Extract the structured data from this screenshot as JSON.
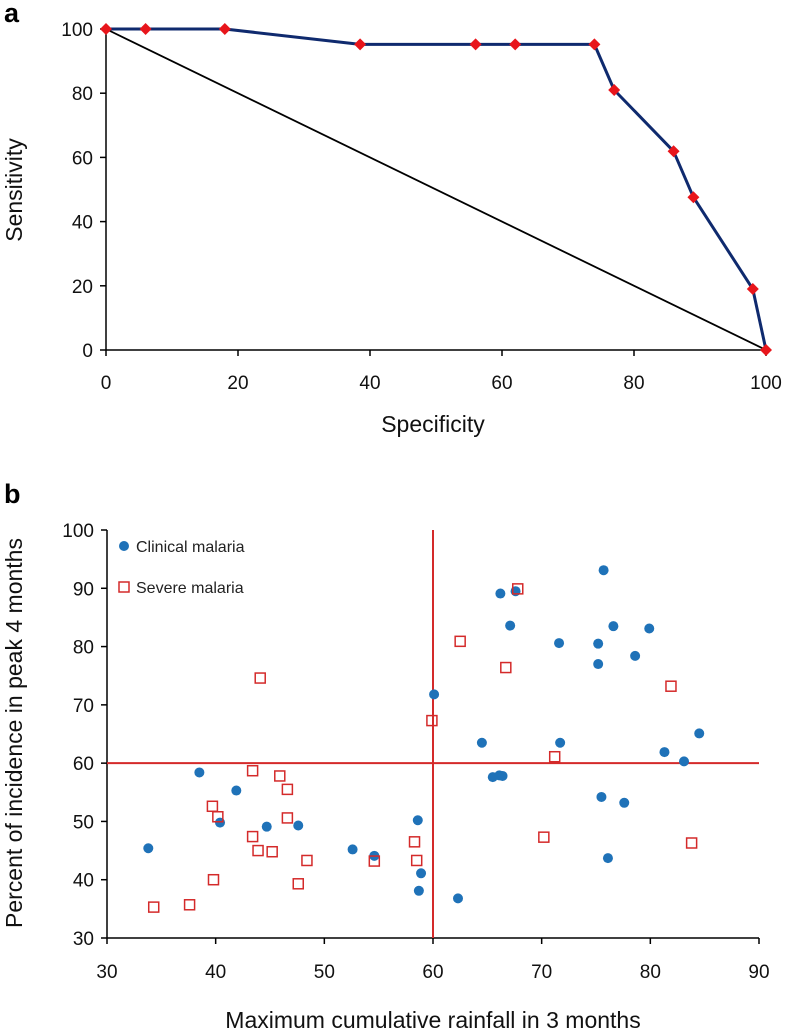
{
  "colors": {
    "roc_line": "#0f2a6e",
    "roc_marker": "#e8151b",
    "clinical": "#1f72b8",
    "severe": "#d42a2a",
    "threshold": "#d42a2a"
  },
  "chart_data": [
    {
      "panel_label": "a",
      "type": "line",
      "xlabel": "Specificity",
      "ylabel": "Sensitivity",
      "xlim": [
        0,
        100
      ],
      "ylim": [
        0,
        100
      ],
      "xticks": [
        "0",
        "20",
        "40",
        "60",
        "80",
        "100"
      ],
      "yticks": [
        "0",
        "20",
        "40",
        "60",
        "80",
        "100"
      ],
      "grid": false,
      "series": [
        {
          "name": "ROC curve",
          "x": [
            0,
            6,
            18,
            38.5,
            56,
            62,
            74,
            77,
            86,
            89,
            98,
            100
          ],
          "y": [
            100,
            100,
            100,
            95.2,
            95.2,
            95.2,
            95.2,
            81,
            61.9,
            47.6,
            19,
            0
          ]
        },
        {
          "name": "Reference line",
          "x": [
            0,
            100
          ],
          "y": [
            100,
            0
          ]
        }
      ]
    },
    {
      "panel_label": "b",
      "type": "scatter",
      "xlabel": "Maximum cumulative rainfall in 3 months",
      "ylabel": "Percent of incidence in peak 4 months",
      "xlim": [
        30,
        90
      ],
      "ylim": [
        30,
        100
      ],
      "xticks": [
        "30",
        "40",
        "50",
        "60",
        "70",
        "80",
        "90"
      ],
      "yticks": [
        "30",
        "40",
        "50",
        "60",
        "70",
        "80",
        "90",
        "100"
      ],
      "grid": false,
      "legend": {
        "position": "top-left",
        "entries": [
          "Clinical malaria",
          "Severe malaria"
        ]
      },
      "threshold_lines": {
        "x": 60,
        "y": 60
      },
      "series": [
        {
          "name": "Clinical malaria",
          "marker": "filled-circle",
          "points": [
            [
              33.8,
              45.4
            ],
            [
              38.5,
              58.4
            ],
            [
              40.4,
              49.8
            ],
            [
              41.9,
              55.3
            ],
            [
              44.7,
              49.1
            ],
            [
              47.6,
              49.3
            ],
            [
              52.6,
              45.2
            ],
            [
              54.6,
              44.1
            ],
            [
              58.6,
              50.2
            ],
            [
              58.9,
              41.1
            ],
            [
              58.7,
              38.1
            ],
            [
              62.3,
              36.8
            ],
            [
              60.1,
              71.8
            ],
            [
              64.5,
              63.5
            ],
            [
              65.5,
              57.6
            ],
            [
              66.1,
              57.9
            ],
            [
              66.4,
              57.8
            ],
            [
              66.2,
              89.1
            ],
            [
              67.1,
              83.6
            ],
            [
              67.6,
              89.5
            ],
            [
              71.6,
              80.6
            ],
            [
              71.7,
              63.5
            ],
            [
              75.2,
              80.5
            ],
            [
              75.2,
              77.0
            ],
            [
              75.5,
              54.2
            ],
            [
              75.7,
              93.1
            ],
            [
              76.1,
              43.7
            ],
            [
              76.6,
              83.5
            ],
            [
              77.6,
              53.2
            ],
            [
              78.6,
              78.4
            ],
            [
              79.9,
              83.1
            ],
            [
              81.3,
              61.9
            ],
            [
              83.1,
              60.3
            ],
            [
              84.5,
              65.1
            ]
          ]
        },
        {
          "name": "Severe malaria",
          "marker": "open-square",
          "points": [
            [
              34.3,
              35.3
            ],
            [
              37.6,
              35.7
            ],
            [
              39.7,
              52.6
            ],
            [
              39.8,
              40.0
            ],
            [
              40.2,
              50.8
            ],
            [
              43.4,
              58.7
            ],
            [
              43.4,
              47.4
            ],
            [
              43.9,
              45.0
            ],
            [
              44.1,
              74.6
            ],
            [
              45.2,
              44.8
            ],
            [
              45.9,
              57.8
            ],
            [
              46.6,
              55.5
            ],
            [
              46.6,
              50.6
            ],
            [
              47.6,
              39.3
            ],
            [
              48.4,
              43.3
            ],
            [
              54.6,
              43.2
            ],
            [
              58.3,
              46.5
            ],
            [
              58.5,
              43.3
            ],
            [
              59.9,
              67.3
            ],
            [
              62.5,
              80.9
            ],
            [
              66.7,
              76.4
            ],
            [
              67.8,
              89.9
            ],
            [
              70.2,
              47.3
            ],
            [
              71.2,
              61.1
            ],
            [
              81.9,
              73.2
            ],
            [
              83.8,
              46.3
            ]
          ]
        }
      ]
    }
  ]
}
